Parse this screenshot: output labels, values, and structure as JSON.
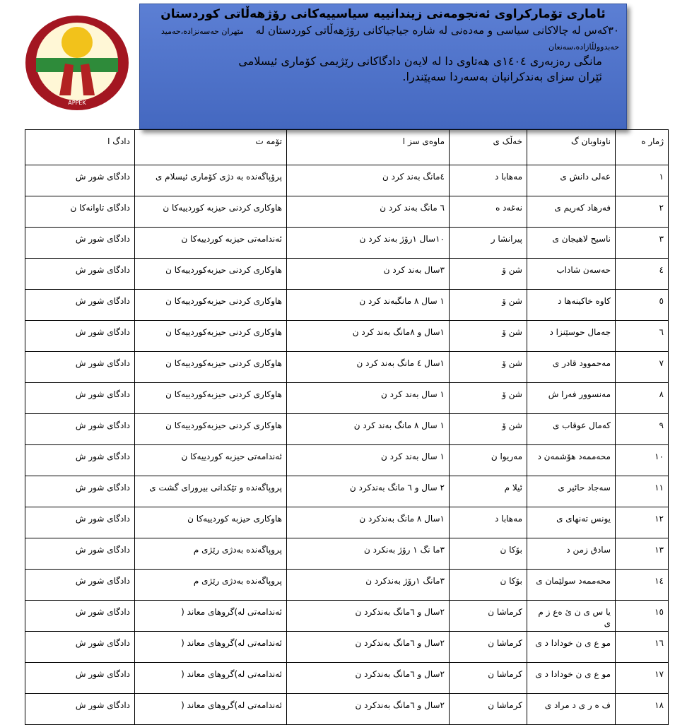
{
  "logo": {
    "label": "APPEK"
  },
  "header": {
    "title": "ئاماری تۆمارکراوی ئەنجومەنی زیندانییە سیاسییەکانی رۆژهەڵاتی کوردستان",
    "line1": "۳۰کەس لە چالاکانی سیاسی و مەدەنی لە شارە جیاجیاکانی رۆژهەڵاتی کوردستان لە",
    "line1_small": "مێهران حەسەنزادە،حەمید حەبدوولڵازادە،سەنعان",
    "line2": "مانگی رەزبەری ۱٤۰٤ی هەتاوی دا لە لایەن دادگاکانی رێژیمی کۆماری ئیسلامی",
    "line3": "ئێران سزای بەندکرانیان بەسەردا سەپێندرا."
  },
  "table": {
    "columns": [
      "ژمار ە",
      "ناوناوبان گ",
      "خەڵک ی",
      "ماوەی سز ا",
      "تۆمە ت",
      "دادگ ا"
    ],
    "rows": [
      [
        "۱",
        "عەلی دانش ی",
        "مەهابا د",
        "٤مانگ بەند کرد ن",
        "پرۆپاگەندە بە دژی کۆماری ئیسلام ی",
        "دادگای شور ش"
      ],
      [
        "۲",
        "فەرهاد کەریم ی",
        "نەغەد ە",
        "٦ مانگ بەند کرد ن",
        "هاوکاری کردنی حیزبە کوردییەکا ن",
        "دادگای تاوانەکا ن"
      ],
      [
        "۳",
        "ناسیح لاهیجان ی",
        "پیرانشا ر",
        "۱۰سال ۱رۆژ بەند کرد ن",
        "ئەندامەتی حیزبە کوردییەکا ن",
        "دادگای شور ش"
      ],
      [
        "٤",
        "حەسەن شاداب",
        "شن ۆ",
        "۳سال بەند کرد ن",
        "هاوکاری کردنی حیزبەکوردییەکا ن",
        "دادگای شور ش"
      ],
      [
        "٥",
        "کاوە خاکینەها د",
        "شن ۆ",
        "۱ سال ۸ مانگبەند کرد ن",
        "هاوکاری کردنی حیزبەکوردییەکا ن",
        "دادگای شور ش"
      ],
      [
        "٦",
        "جەمال حوسێنزا د",
        "شن ۆ",
        "۱سال و ۸مانگ بەند کرد ن",
        "هاوکاری کردنی حیزبەکوردییەکا ن",
        "دادگای شور ش"
      ],
      [
        "۷",
        "مەحموود قادر ی",
        "شن ۆ",
        "۱سال ٤ مانگ بەند کرد ن",
        "هاوکاری کردنی حیزبەکوردییەکا ن",
        "دادگای شور ش"
      ],
      [
        "۸",
        "مەنسوور فەرا ش",
        "شن ۆ",
        "۱ سال بەند کرد ن",
        "هاوکاری کردنی حیزبەکوردییەکا ن",
        "دادگای شور ش"
      ],
      [
        "۹",
        "کەمال عوقاب ی",
        "شن ۆ",
        "۱ سال ۸ مانگ بەند کرد ن",
        "هاوکاری کردنی حیزبەکوردییەکا ن",
        "دادگای شور ش"
      ],
      [
        "۱۰",
        "محەممەد هۆشمەن د",
        "مەریوا ن",
        "۱ سال بەند کرد ن",
        "ئەندامەتی حیزبە کوردییەکا ن",
        "دادگای شور ش"
      ],
      [
        "۱۱",
        "سەجاد حائیر ی",
        "ئیلا م",
        "۲ سال و ٦ مانگ بەندکرد ن",
        "پروپاگەندە و تێکدانی بیرورای گشت ی",
        "دادگای شور ش"
      ],
      [
        "۱۲",
        "یونس تەنهای ی",
        "مەهابا د",
        "۱سال ۸ مانگ بەندکرد ن",
        "هاوکاری حیزبە کوردییەکا ن",
        "دادگای شور ش"
      ],
      [
        "۱۳",
        "سادق زمن د",
        "بۆکا ن",
        "۳ما نگ ۱ رۆژ بەنکرد ن",
        "پروپاگەندە بەدژی رێژی م",
        "دادگای شور ش"
      ],
      [
        "۱٤",
        "محەممەد سولێمان ی",
        "بۆکا ن",
        "۳مانگ ۱رۆژ بەندکرد ن",
        "پروپاگەندە بەدژی رێژی م",
        "دادگای شور ش"
      ],
      [
        "۱٥",
        "یا س ی ن ئ ەع ز م ی",
        "کرماشا ن",
        "۲سال و ٦مانگ بەندکرد ن",
        "ئەندامەتی لە)گروهای معاند (",
        "دادگای شور ش"
      ],
      [
        "۱٦",
        "مو ع ی ن خودادا د ی",
        "کرماشا ن",
        "۲سال و ٦مانگ بەندکرد ن",
        "ئەندامەتی لە)گروهای معاند (",
        "دادگای شور ش"
      ],
      [
        "۱۷",
        "مو ع ی ن خودادا د ی",
        "کرماشا ن",
        "۲سال و ٦مانگ بەندکرد ن",
        "ئەندامەتی لە)گروهای معاند (",
        "دادگای شور ش"
      ],
      [
        "۱۸",
        "ف ە ر ی د مراد ی",
        "کرماشا ن",
        "۲سال و ٦مانگ بەندکرد ن",
        "ئەندامەتی لە)گروهای معاند (",
        "دادگای شور ش"
      ]
    ]
  }
}
